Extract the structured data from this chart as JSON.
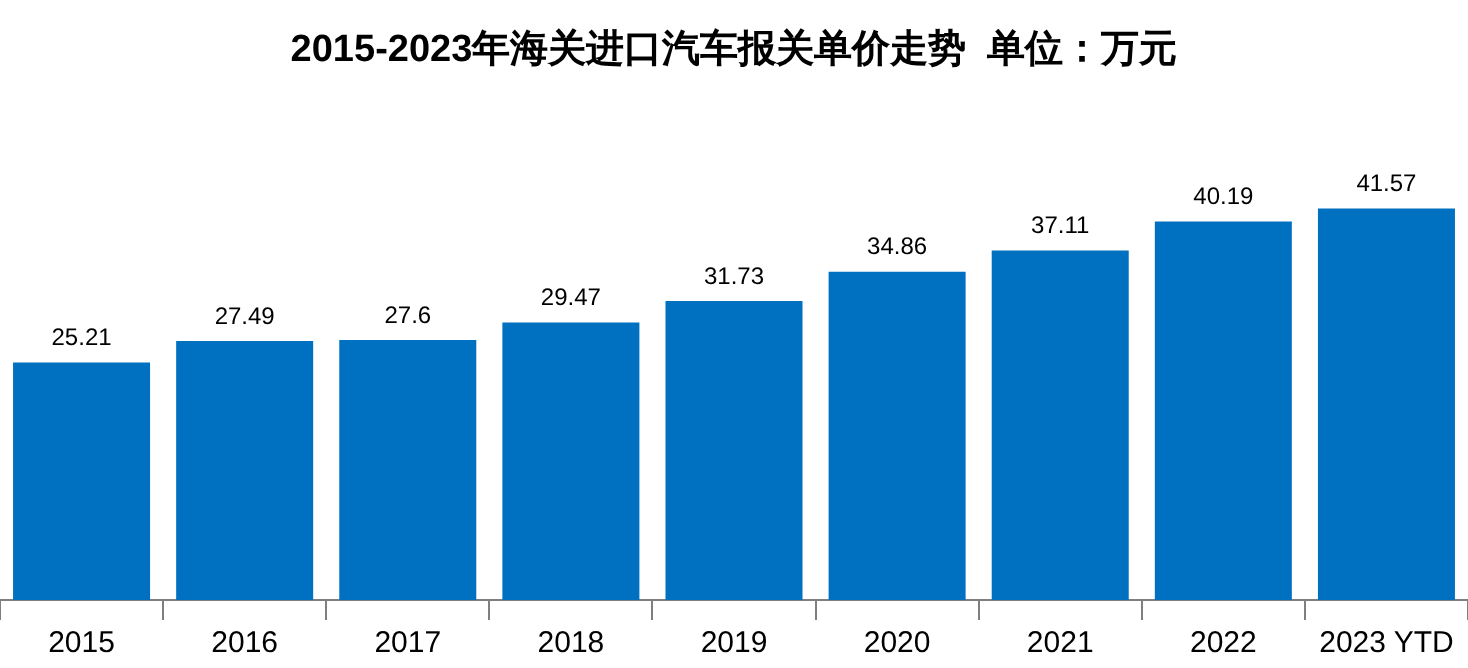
{
  "chart_data": {
    "type": "bar",
    "title": "2015-2023年海关进口汽车报关单价走势  单位：万元",
    "categories": [
      "2015",
      "2016",
      "2017",
      "2018",
      "2019",
      "2020",
      "2021",
      "2022",
      "2023 YTD"
    ],
    "values": [
      25.21,
      27.49,
      27.6,
      29.47,
      31.73,
      34.86,
      37.11,
      40.19,
      41.57
    ],
    "color": "#0070c0",
    "data_labels": true,
    "grid": false,
    "legend": false,
    "tick_labels": "x"
  }
}
